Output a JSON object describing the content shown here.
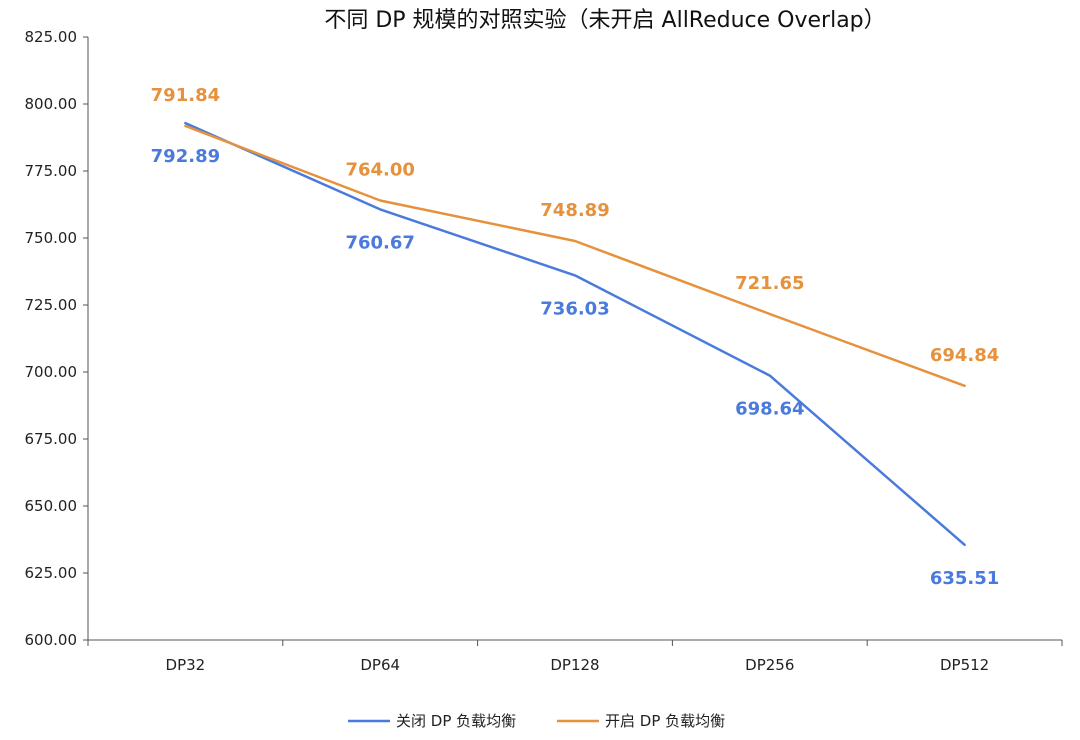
{
  "chart_data": {
    "type": "line",
    "title": "不同 DP 规模的对照实验（未开启 AllReduce Overlap）",
    "categories": [
      "DP32",
      "DP64",
      "DP128",
      "DP256",
      "DP512"
    ],
    "ylim": [
      600,
      825
    ],
    "ytick_step": 25,
    "ytick_labels": [
      "600.00",
      "625.00",
      "650.00",
      "675.00",
      "700.00",
      "725.00",
      "750.00",
      "775.00",
      "800.00",
      "825.00"
    ],
    "grid": false,
    "legend_position": "bottom-center",
    "series": [
      {
        "name": "关闭 DP 负载均衡",
        "color": "#4a7bdc",
        "values": [
          792.89,
          760.67,
          736.03,
          698.64,
          635.51
        ],
        "labels": [
          "792.89",
          "760.67",
          "736.03",
          "698.64",
          "635.51"
        ],
        "label_side": "below"
      },
      {
        "name": "开启 DP 负载均衡",
        "color": "#e6923d",
        "values": [
          791.84,
          764.0,
          748.89,
          721.65,
          694.84
        ],
        "labels": [
          "791.84",
          "764.00",
          "748.89",
          "721.65",
          "694.84"
        ],
        "label_side": "above"
      }
    ]
  }
}
